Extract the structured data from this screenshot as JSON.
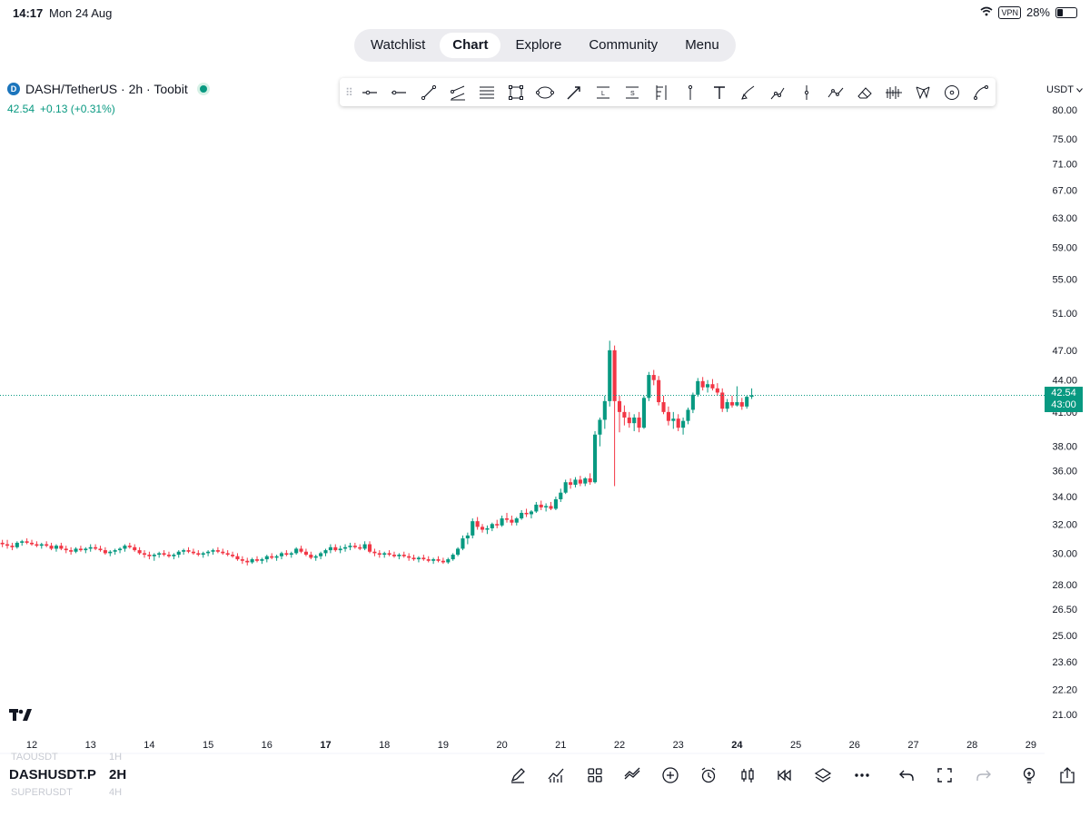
{
  "status_bar": {
    "time": "14:17",
    "date": "Mon 24 Aug",
    "vpn": "VPN",
    "battery": "28%",
    "battery_level": 0.28
  },
  "nav": {
    "tabs": [
      {
        "label": "Watchlist",
        "active": false
      },
      {
        "label": "Chart",
        "active": true
      },
      {
        "label": "Explore",
        "active": false
      },
      {
        "label": "Community",
        "active": false
      },
      {
        "label": "Menu",
        "active": false
      }
    ]
  },
  "symbol": {
    "logo_letter": "D",
    "title": "DASH/TetherUS · 2h · Toobit",
    "price": "42.54",
    "change": "+0.13 (+0.31%)"
  },
  "drawing_tools": [
    "horizontal-ray-icon",
    "horizontal-line-icon",
    "trend-line-icon",
    "parallel-channel-icon",
    "fib-retracement-icon",
    "rectangle-icon",
    "ellipse-icon",
    "arrow-icon",
    "long-position-icon",
    "short-position-icon",
    "pitchfork-icon",
    "vertical-ruler-icon",
    "text-icon",
    "brush-icon",
    "path-icon",
    "vertical-line-icon",
    "polyline-icon",
    "eraser-icon",
    "volume-profile-icon",
    "xabcd-pattern-icon",
    "circle-icon",
    "curve-icon"
  ],
  "currency": "USDT",
  "colors": {
    "up": "#089981",
    "down": "#f23645",
    "price_line": "#089981"
  },
  "chart_data": {
    "type": "candlestick",
    "symbol": "DASH/TetherUS",
    "interval": "2h",
    "exchange": "Toobit",
    "y_axis_labels": [
      "80.00",
      "75.00",
      "71.00",
      "67.00",
      "63.00",
      "59.00",
      "55.00",
      "51.00",
      "47.00",
      "44.00",
      "41.00",
      "38.00",
      "36.00",
      "34.00",
      "32.00",
      "30.00",
      "28.00",
      "26.50",
      "25.00",
      "23.60",
      "22.20",
      "21.00"
    ],
    "y_scale": "log",
    "x_axis_labels": [
      "12",
      "13",
      "14",
      "15",
      "16",
      "17",
      "18",
      "19",
      "20",
      "21",
      "22",
      "23",
      "24",
      "25",
      "26",
      "27",
      "28",
      "29"
    ],
    "x_bold_labels": [
      "17",
      "24"
    ],
    "current_price": "42.54",
    "current_price_secondary": "43:00",
    "candles_per_day": 12,
    "start_day": 11.5,
    "candles": [
      [
        30.7,
        30.9,
        30.4,
        30.6
      ],
      [
        30.6,
        30.9,
        30.3,
        30.5
      ],
      [
        30.5,
        30.7,
        30.2,
        30.4
      ],
      [
        30.4,
        30.8,
        30.3,
        30.7
      ],
      [
        30.7,
        30.9,
        30.5,
        30.8
      ],
      [
        30.8,
        31.0,
        30.6,
        30.7
      ],
      [
        30.7,
        30.9,
        30.5,
        30.6
      ],
      [
        30.6,
        30.8,
        30.4,
        30.5
      ],
      [
        30.5,
        30.7,
        30.3,
        30.6
      ],
      [
        30.6,
        30.8,
        30.4,
        30.5
      ],
      [
        30.5,
        30.7,
        30.2,
        30.3
      ],
      [
        30.3,
        30.6,
        30.1,
        30.5
      ],
      [
        30.5,
        30.7,
        30.2,
        30.3
      ],
      [
        30.3,
        30.5,
        30.0,
        30.2
      ],
      [
        30.2,
        30.4,
        29.9,
        30.1
      ],
      [
        30.1,
        30.4,
        30.0,
        30.3
      ],
      [
        30.3,
        30.5,
        30.1,
        30.2
      ],
      [
        30.2,
        30.4,
        30.0,
        30.3
      ],
      [
        30.3,
        30.6,
        30.1,
        30.4
      ],
      [
        30.4,
        30.6,
        30.2,
        30.3
      ],
      [
        30.3,
        30.5,
        30.1,
        30.2
      ],
      [
        30.2,
        30.4,
        29.9,
        30.0
      ],
      [
        30.0,
        30.2,
        29.8,
        30.1
      ],
      [
        30.1,
        30.3,
        29.9,
        30.2
      ],
      [
        30.2,
        30.4,
        30.0,
        30.3
      ],
      [
        30.3,
        30.6,
        30.1,
        30.5
      ],
      [
        30.5,
        30.7,
        30.3,
        30.4
      ],
      [
        30.4,
        30.6,
        30.1,
        30.2
      ],
      [
        30.2,
        30.4,
        29.9,
        30.0
      ],
      [
        30.0,
        30.2,
        29.7,
        29.9
      ],
      [
        29.9,
        30.1,
        29.6,
        29.8
      ],
      [
        29.8,
        30.0,
        29.5,
        29.9
      ],
      [
        29.9,
        30.1,
        29.7,
        30.0
      ],
      [
        30.0,
        30.2,
        29.8,
        29.9
      ],
      [
        29.9,
        30.1,
        29.7,
        29.8
      ],
      [
        29.8,
        30.0,
        29.6,
        29.9
      ],
      [
        29.9,
        30.2,
        29.7,
        30.1
      ],
      [
        30.1,
        30.3,
        29.9,
        30.2
      ],
      [
        30.2,
        30.4,
        30.0,
        30.1
      ],
      [
        30.1,
        30.3,
        29.9,
        30.0
      ],
      [
        30.0,
        30.2,
        29.8,
        29.9
      ],
      [
        29.9,
        30.1,
        29.7,
        30.0
      ],
      [
        30.0,
        30.2,
        29.8,
        30.1
      ],
      [
        30.1,
        30.3,
        29.9,
        30.2
      ],
      [
        30.2,
        30.4,
        30.0,
        30.1
      ],
      [
        30.1,
        30.3,
        29.9,
        30.0
      ],
      [
        30.0,
        30.2,
        29.8,
        29.9
      ],
      [
        29.9,
        30.1,
        29.7,
        29.8
      ],
      [
        29.8,
        30.0,
        29.5,
        29.6
      ],
      [
        29.6,
        29.8,
        29.3,
        29.5
      ],
      [
        29.5,
        29.7,
        29.2,
        29.4
      ],
      [
        29.4,
        29.7,
        29.3,
        29.6
      ],
      [
        29.6,
        29.8,
        29.4,
        29.5
      ],
      [
        29.5,
        29.7,
        29.3,
        29.6
      ],
      [
        29.6,
        29.9,
        29.4,
        29.8
      ],
      [
        29.8,
        30.0,
        29.6,
        29.7
      ],
      [
        29.7,
        29.9,
        29.5,
        29.8
      ],
      [
        29.8,
        30.1,
        29.6,
        30.0
      ],
      [
        30.0,
        30.2,
        29.8,
        29.9
      ],
      [
        29.9,
        30.1,
        29.7,
        30.0
      ],
      [
        30.0,
        30.4,
        29.9,
        30.3
      ],
      [
        30.3,
        30.5,
        30.0,
        30.1
      ],
      [
        30.1,
        30.3,
        29.8,
        29.9
      ],
      [
        29.9,
        30.1,
        29.6,
        29.7
      ],
      [
        29.7,
        29.9,
        29.5,
        29.8
      ],
      [
        29.8,
        30.1,
        29.6,
        30.0
      ],
      [
        30.0,
        30.3,
        29.8,
        30.2
      ],
      [
        30.2,
        30.6,
        30.0,
        30.4
      ],
      [
        30.4,
        30.6,
        30.1,
        30.2
      ],
      [
        30.2,
        30.5,
        30.0,
        30.3
      ],
      [
        30.3,
        30.6,
        30.1,
        30.4
      ],
      [
        30.4,
        30.7,
        30.2,
        30.5
      ],
      [
        30.5,
        30.7,
        30.3,
        30.4
      ],
      [
        30.4,
        30.6,
        30.2,
        30.3
      ],
      [
        30.3,
        30.8,
        30.2,
        30.6
      ],
      [
        30.6,
        30.8,
        30.0,
        30.1
      ],
      [
        30.1,
        30.3,
        29.8,
        30.0
      ],
      [
        30.0,
        30.2,
        29.7,
        29.9
      ],
      [
        29.9,
        30.1,
        29.7,
        30.0
      ],
      [
        30.0,
        30.2,
        29.8,
        29.9
      ],
      [
        29.9,
        30.1,
        29.7,
        29.8
      ],
      [
        29.8,
        30.0,
        29.6,
        29.9
      ],
      [
        29.9,
        30.1,
        29.7,
        29.8
      ],
      [
        29.8,
        30.0,
        29.5,
        29.7
      ],
      [
        29.7,
        29.9,
        29.5,
        29.6
      ],
      [
        29.6,
        29.8,
        29.4,
        29.7
      ],
      [
        29.7,
        29.9,
        29.5,
        29.6
      ],
      [
        29.6,
        29.8,
        29.4,
        29.5
      ],
      [
        29.5,
        29.7,
        29.3,
        29.6
      ],
      [
        29.6,
        29.8,
        29.4,
        29.5
      ],
      [
        29.5,
        29.7,
        29.3,
        29.4
      ],
      [
        29.4,
        29.7,
        29.3,
        29.6
      ],
      [
        29.6,
        30.0,
        29.5,
        29.9
      ],
      [
        29.9,
        30.4,
        29.8,
        30.3
      ],
      [
        30.3,
        31.2,
        30.2,
        31.0
      ],
      [
        31.0,
        31.4,
        30.6,
        31.2
      ],
      [
        31.2,
        32.4,
        31.0,
        32.2
      ],
      [
        32.2,
        32.5,
        31.6,
        31.8
      ],
      [
        31.8,
        32.0,
        31.4,
        31.6
      ],
      [
        31.6,
        31.9,
        31.3,
        31.7
      ],
      [
        31.7,
        32.1,
        31.5,
        32.0
      ],
      [
        32.0,
        32.3,
        31.7,
        31.9
      ],
      [
        31.9,
        32.6,
        31.8,
        32.4
      ],
      [
        32.4,
        32.8,
        32.1,
        32.3
      ],
      [
        32.3,
        32.6,
        31.9,
        32.1
      ],
      [
        32.1,
        32.5,
        31.9,
        32.4
      ],
      [
        32.4,
        33.0,
        32.3,
        32.8
      ],
      [
        32.8,
        33.1,
        32.5,
        32.7
      ],
      [
        32.7,
        33.0,
        32.4,
        32.9
      ],
      [
        32.9,
        33.6,
        32.8,
        33.4
      ],
      [
        33.4,
        33.7,
        33.0,
        33.2
      ],
      [
        33.2,
        33.5,
        32.9,
        33.3
      ],
      [
        33.3,
        33.6,
        33.0,
        33.1
      ],
      [
        33.1,
        34.0,
        33.0,
        33.8
      ],
      [
        33.8,
        34.6,
        33.6,
        34.3
      ],
      [
        34.3,
        35.3,
        34.2,
        35.1
      ],
      [
        35.1,
        35.4,
        34.6,
        34.9
      ],
      [
        34.9,
        35.5,
        34.7,
        35.3
      ],
      [
        35.3,
        35.6,
        34.8,
        35.0
      ],
      [
        35.0,
        35.5,
        34.8,
        35.4
      ],
      [
        35.4,
        35.8,
        34.9,
        35.1
      ],
      [
        35.1,
        39.3,
        35.0,
        39.0
      ],
      [
        39.0,
        40.5,
        38.0,
        40.3
      ],
      [
        40.3,
        42.5,
        39.5,
        42.0
      ],
      [
        42.0,
        48.0,
        41.5,
        47.0
      ],
      [
        47.0,
        47.5,
        34.8,
        42.0
      ],
      [
        42.0,
        42.5,
        39.2,
        41.0
      ],
      [
        41.0,
        41.6,
        39.8,
        40.5
      ],
      [
        40.5,
        41.0,
        39.6,
        40.0
      ],
      [
        40.0,
        40.8,
        39.3,
        40.5
      ],
      [
        40.5,
        41.0,
        39.2,
        39.6
      ],
      [
        39.6,
        42.5,
        39.5,
        42.3
      ],
      [
        42.3,
        44.8,
        42.0,
        44.5
      ],
      [
        44.5,
        45.0,
        43.5,
        44.0
      ],
      [
        44.0,
        44.4,
        41.6,
        41.9
      ],
      [
        41.9,
        42.5,
        40.8,
        41.0
      ],
      [
        41.0,
        41.5,
        39.8,
        40.2
      ],
      [
        40.2,
        41.0,
        39.5,
        40.4
      ],
      [
        40.4,
        40.8,
        39.3,
        39.6
      ],
      [
        39.6,
        40.5,
        39.0,
        40.2
      ],
      [
        40.2,
        41.4,
        39.9,
        41.2
      ],
      [
        41.2,
        42.8,
        40.9,
        42.6
      ],
      [
        42.6,
        44.2,
        42.4,
        43.9
      ],
      [
        43.9,
        44.3,
        43.0,
        43.3
      ],
      [
        43.3,
        44.0,
        42.8,
        43.6
      ],
      [
        43.6,
        44.1,
        43.0,
        43.2
      ],
      [
        43.2,
        43.7,
        42.5,
        42.8
      ],
      [
        42.8,
        43.2,
        41.0,
        41.3
      ],
      [
        41.3,
        42.2,
        41.0,
        41.9
      ],
      [
        41.9,
        42.5,
        41.4,
        41.6
      ],
      [
        41.6,
        43.4,
        41.5,
        41.9
      ],
      [
        41.9,
        42.3,
        41.2,
        41.5
      ],
      [
        41.5,
        42.5,
        41.3,
        42.4
      ],
      [
        42.4,
        43.2,
        42.2,
        42.54
      ]
    ]
  },
  "watchlist_ghost": [
    "TAOUSDT",
    "1H",
    "SUPERUSDT",
    "4H"
  ],
  "bottom_bar": {
    "symbol": "DASHUSDT.P",
    "interval": "2H",
    "tools": [
      "pencil-icon",
      "indicators-icon",
      "grid-layout-icon",
      "compare-icon",
      "plus-circle-icon",
      "alarm-icon",
      "candlestick-icon",
      "replay-icon",
      "layers-icon",
      "more-icon",
      "undo-icon",
      "fullscreen-icon",
      "redo-icon",
      "idea-icon",
      "share-icon"
    ]
  }
}
